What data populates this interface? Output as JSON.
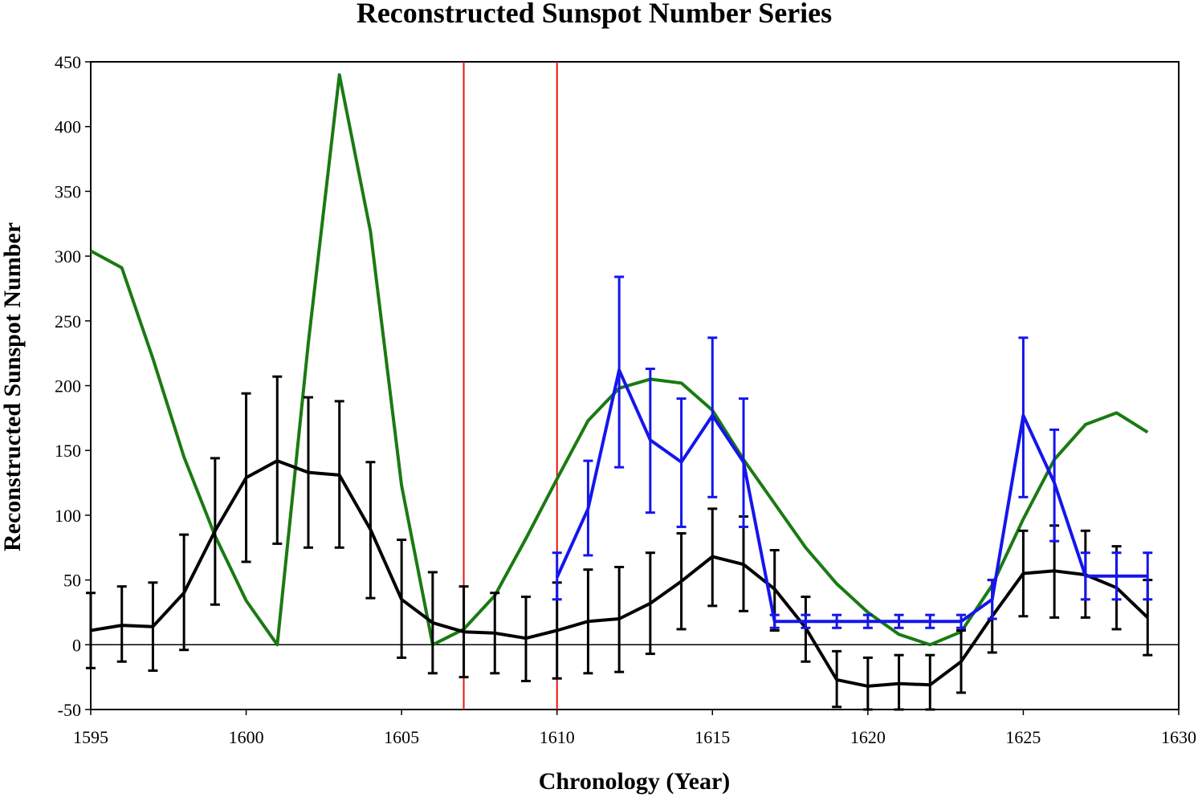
{
  "chart_data": {
    "type": "line",
    "title": "Reconstructed Sunspot Number Series",
    "xlabel": "Chronology (Year)",
    "ylabel": "Reconstructed Sunspot Number",
    "xlim": [
      1595,
      1630
    ],
    "ylim": [
      -50,
      450
    ],
    "xticks": [
      1595,
      1600,
      1605,
      1610,
      1615,
      1620,
      1625,
      1630
    ],
    "yticks": [
      -50,
      0,
      50,
      100,
      150,
      200,
      250,
      300,
      350,
      400,
      450
    ],
    "xtick_labels": [
      "1595",
      "1600",
      "1605",
      "1610",
      "1615",
      "1620",
      "1625",
      "1630"
    ],
    "ytick_labels": [
      "-50",
      "0",
      "50",
      "100",
      "150",
      "200",
      "250",
      "300",
      "350",
      "400",
      "450"
    ],
    "grid": false,
    "vertical_markers": [
      1607,
      1610
    ],
    "series": [
      {
        "name": "green",
        "color": "#1a7a12",
        "x": [
          1595,
          1596,
          1597,
          1598,
          1599,
          1600,
          1601,
          1602,
          1603,
          1604,
          1605,
          1606,
          1607,
          1608,
          1609,
          1610,
          1611,
          1612,
          1613,
          1614,
          1615,
          1616,
          1617,
          1618,
          1619,
          1620,
          1621,
          1622,
          1623,
          1624,
          1625,
          1626,
          1627,
          1628,
          1629
        ],
        "values": [
          304,
          291,
          221,
          145,
          84,
          34,
          0,
          233,
          440,
          319,
          123,
          0,
          12,
          38,
          82,
          128,
          173,
          198,
          205,
          202,
          181,
          143,
          109,
          75,
          47,
          25,
          8,
          0,
          10,
          46,
          97,
          143,
          170,
          179,
          164
        ]
      },
      {
        "name": "black",
        "color": "#000000",
        "x": [
          1595,
          1596,
          1597,
          1598,
          1599,
          1600,
          1601,
          1602,
          1603,
          1604,
          1605,
          1606,
          1607,
          1608,
          1609,
          1610,
          1611,
          1612,
          1613,
          1614,
          1615,
          1616,
          1617,
          1618,
          1619,
          1620,
          1621,
          1622,
          1623,
          1624,
          1625,
          1626,
          1627,
          1628,
          1629
        ],
        "values": [
          11,
          15,
          14,
          40,
          88,
          129,
          142,
          133,
          131,
          89,
          35,
          17,
          10,
          9,
          5,
          11,
          18,
          20,
          32,
          49,
          68,
          62,
          43,
          13,
          -27,
          -32,
          -30,
          -31,
          -13,
          22,
          55,
          57,
          54,
          44,
          21
        ],
        "err_upper": [
          40,
          45,
          48,
          85,
          144,
          194,
          207,
          191,
          188,
          141,
          81,
          56,
          45,
          40,
          37,
          48,
          58,
          60,
          71,
          86,
          105,
          99,
          73,
          37,
          -5,
          -10,
          -8,
          -8,
          11,
          50,
          88,
          92,
          88,
          76,
          50
        ],
        "err_lower": [
          -18,
          -13,
          -20,
          -4,
          31,
          64,
          78,
          75,
          75,
          36,
          -10,
          -22,
          -25,
          -22,
          -28,
          -26,
          -22,
          -21,
          -7,
          12,
          30,
          26,
          11,
          -13,
          -48,
          -50,
          -50,
          -50,
          -37,
          -6,
          22,
          21,
          21,
          12,
          -8
        ]
      },
      {
        "name": "blue",
        "color": "#1515ee",
        "x": [
          1610,
          1611,
          1612,
          1613,
          1614,
          1615,
          1616,
          1617,
          1618,
          1619,
          1620,
          1621,
          1622,
          1623,
          1624,
          1625,
          1626,
          1627,
          1628,
          1629
        ],
        "values": [
          52,
          105,
          212,
          158,
          141,
          177,
          141,
          18,
          18,
          18,
          18,
          18,
          18,
          18,
          35,
          177,
          125,
          53,
          53,
          53
        ],
        "err_upper": [
          71,
          142,
          284,
          213,
          190,
          237,
          190,
          23,
          23,
          23,
          23,
          23,
          23,
          23,
          50,
          237,
          166,
          71,
          71,
          71
        ],
        "err_lower": [
          35,
          69,
          137,
          102,
          91,
          114,
          91,
          13,
          13,
          13,
          13,
          13,
          13,
          13,
          20,
          114,
          80,
          35,
          35,
          35
        ]
      }
    ]
  }
}
